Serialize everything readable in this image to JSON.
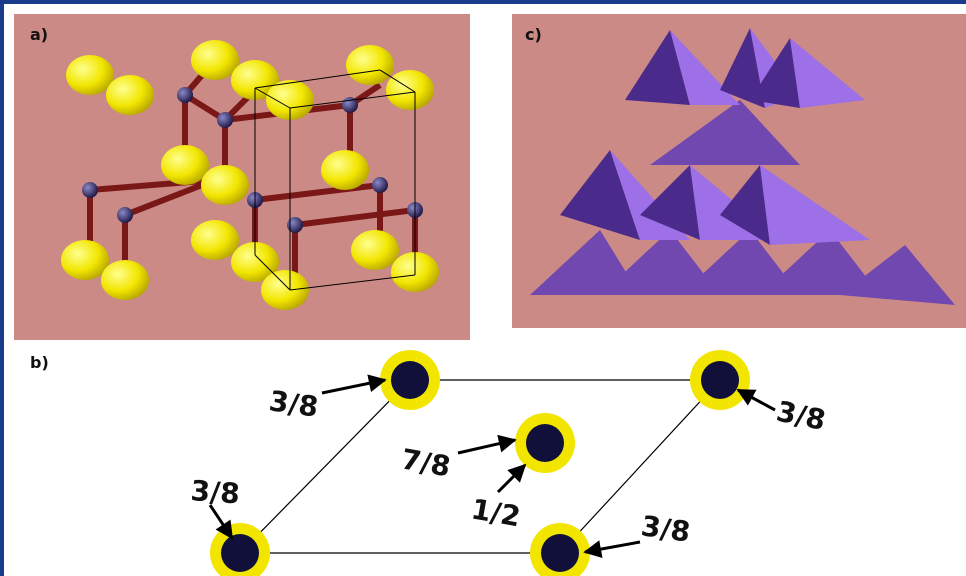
{
  "panels": {
    "a": {
      "label": "a)"
    },
    "b": {
      "label": "b)",
      "annotations": [
        "3/8",
        "3/8",
        "7/8",
        "1/2",
        "3/8",
        "3/8"
      ]
    },
    "c": {
      "label": "c)"
    }
  }
}
